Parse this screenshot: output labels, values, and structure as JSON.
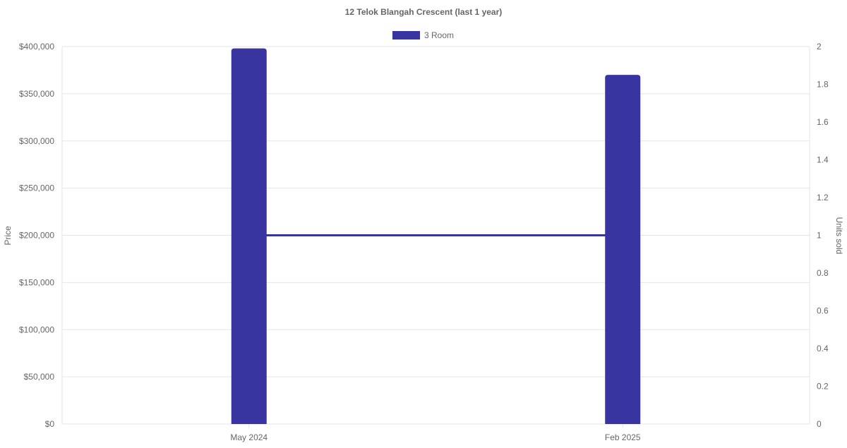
{
  "chart_data": {
    "type": "bar",
    "title": "12 Telok Blangah Crescent (last 1 year)",
    "categories": [
      "May 2024",
      "Feb 2025"
    ],
    "series": [
      {
        "name": "3 Room",
        "type": "bar",
        "axis": "left",
        "values": [
          398000,
          370000
        ],
        "color": "#3834a0"
      },
      {
        "name": "3 Room",
        "type": "line",
        "axis": "right",
        "values": [
          1,
          1
        ],
        "color": "#3834a0"
      }
    ],
    "legend": {
      "entries": [
        "3 Room"
      ],
      "placement": "top"
    },
    "ylabel": "Price",
    "y2label": "Units sold",
    "ylim": [
      0,
      400000
    ],
    "y2lim": [
      0,
      2
    ],
    "yticks": [
      "$0",
      "$50,000",
      "$100,000",
      "$150,000",
      "$200,000",
      "$250,000",
      "$300,000",
      "$350,000",
      "$400,000"
    ],
    "y2ticks": [
      "0",
      "0.2",
      "0.4",
      "0.6",
      "0.8",
      "1",
      "1.2",
      "1.4",
      "1.6",
      "1.8",
      "2"
    ],
    "grid": true
  }
}
